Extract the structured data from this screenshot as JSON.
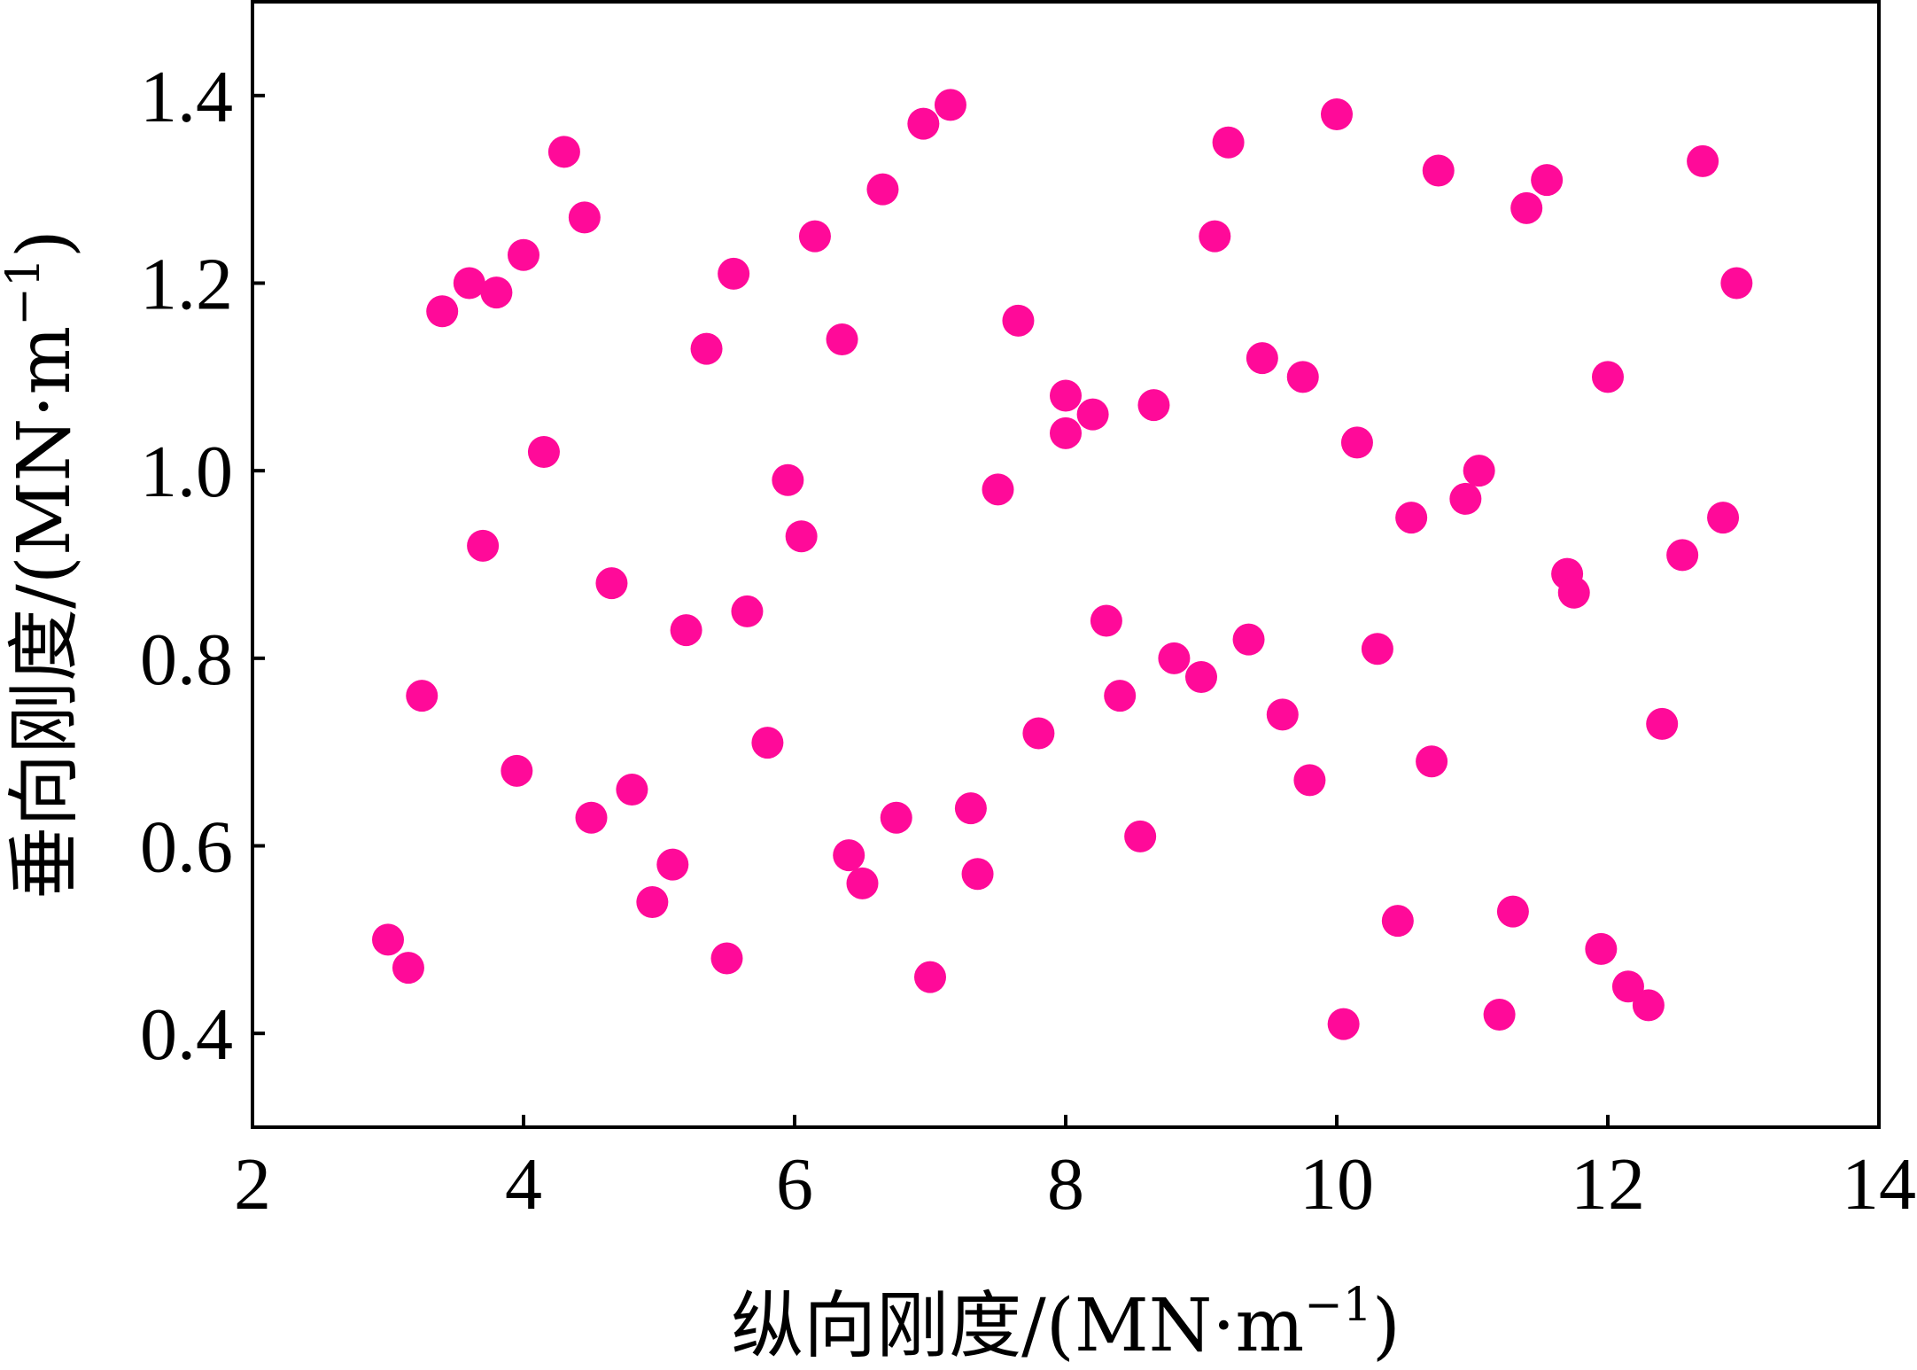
{
  "chart_data": {
    "type": "scatter",
    "title": "",
    "xlabel": "纵向刚度/(MN·m⁻¹)",
    "ylabel": "垂向刚度/(MN·m⁻¹)",
    "xlabel_parts": {
      "main": "纵向刚度/(MN·m",
      "sup": "−1",
      "close": ")"
    },
    "ylabel_parts": {
      "main": "垂向刚度/(MN·m",
      "sup": "−1",
      "close": ")"
    },
    "xlim": [
      2,
      14
    ],
    "ylim": [
      0.3,
      1.5
    ],
    "xticks": [
      2,
      4,
      6,
      8,
      10,
      12,
      14
    ],
    "yticks": [
      0.4,
      0.6,
      0.8,
      1.0,
      1.2,
      1.4
    ],
    "xtick_labels": [
      "2",
      "4",
      "6",
      "8",
      "10",
      "12",
      "14"
    ],
    "ytick_labels": [
      "0.4",
      "0.6",
      "0.8",
      "1.0",
      "1.2",
      "1.4"
    ],
    "grid": false,
    "legend": "none",
    "marker_color": "#FF0A99",
    "series": [
      {
        "points": [
          [
            3.0,
            0.5
          ],
          [
            3.15,
            0.47
          ],
          [
            3.25,
            0.76
          ],
          [
            3.4,
            1.17
          ],
          [
            3.6,
            1.2
          ],
          [
            3.7,
            0.92
          ],
          [
            3.8,
            1.19
          ],
          [
            3.95,
            0.68
          ],
          [
            4.0,
            1.23
          ],
          [
            4.15,
            1.02
          ],
          [
            4.3,
            1.34
          ],
          [
            4.45,
            1.27
          ],
          [
            4.5,
            0.63
          ],
          [
            4.65,
            0.88
          ],
          [
            4.8,
            0.66
          ],
          [
            4.95,
            0.54
          ],
          [
            5.1,
            0.58
          ],
          [
            5.2,
            0.83
          ],
          [
            5.35,
            1.13
          ],
          [
            5.5,
            0.48
          ],
          [
            5.55,
            1.21
          ],
          [
            5.65,
            0.85
          ],
          [
            5.8,
            0.71
          ],
          [
            5.95,
            0.99
          ],
          [
            6.05,
            0.93
          ],
          [
            6.15,
            1.25
          ],
          [
            6.35,
            1.14
          ],
          [
            6.4,
            0.59
          ],
          [
            6.5,
            0.56
          ],
          [
            6.65,
            1.3
          ],
          [
            6.75,
            0.63
          ],
          [
            6.95,
            1.37
          ],
          [
            7.0,
            0.46
          ],
          [
            7.15,
            1.39
          ],
          [
            7.3,
            0.64
          ],
          [
            7.35,
            0.57
          ],
          [
            7.5,
            0.98
          ],
          [
            7.65,
            1.16
          ],
          [
            7.8,
            0.72
          ],
          [
            8.0,
            1.08
          ],
          [
            8.0,
            1.04
          ],
          [
            8.2,
            1.06
          ],
          [
            8.3,
            0.84
          ],
          [
            8.4,
            0.76
          ],
          [
            8.55,
            0.61
          ],
          [
            8.65,
            1.07
          ],
          [
            8.8,
            0.8
          ],
          [
            9.0,
            0.78
          ],
          [
            9.1,
            1.25
          ],
          [
            9.2,
            1.35
          ],
          [
            9.35,
            0.82
          ],
          [
            9.45,
            1.12
          ],
          [
            9.6,
            0.74
          ],
          [
            9.75,
            1.1
          ],
          [
            9.8,
            0.67
          ],
          [
            10.0,
            1.38
          ],
          [
            10.05,
            0.41
          ],
          [
            10.15,
            1.03
          ],
          [
            10.3,
            0.81
          ],
          [
            10.45,
            0.52
          ],
          [
            10.55,
            0.95
          ],
          [
            10.7,
            0.69
          ],
          [
            10.75,
            1.32
          ],
          [
            10.95,
            0.97
          ],
          [
            11.05,
            1.0
          ],
          [
            11.2,
            0.42
          ],
          [
            11.3,
            0.53
          ],
          [
            11.4,
            1.28
          ],
          [
            11.55,
            1.31
          ],
          [
            11.7,
            0.89
          ],
          [
            11.75,
            0.87
          ],
          [
            11.95,
            0.49
          ],
          [
            12.0,
            1.1
          ],
          [
            12.15,
            0.45
          ],
          [
            12.3,
            0.43
          ],
          [
            12.4,
            0.73
          ],
          [
            12.55,
            0.91
          ],
          [
            12.7,
            1.33
          ],
          [
            12.85,
            0.95
          ],
          [
            12.95,
            1.2
          ]
        ]
      }
    ]
  }
}
